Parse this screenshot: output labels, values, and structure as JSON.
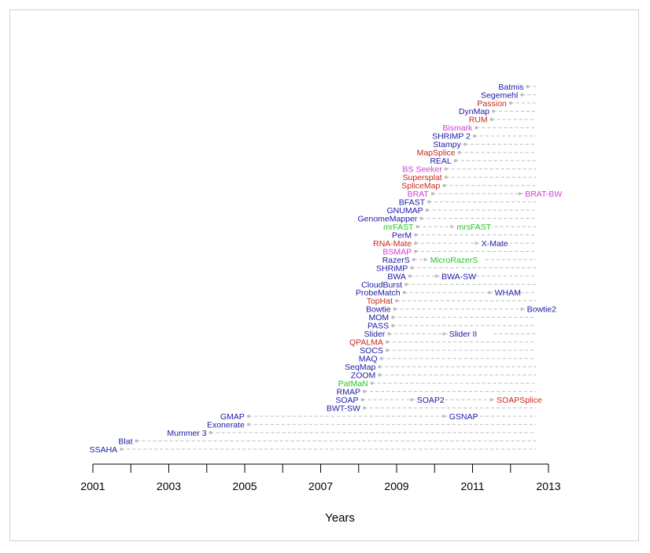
{
  "colors": {
    "aligner": "#1a1aa6",
    "splice": "#c8281e",
    "bisulfite": "#d23cd2",
    "other": "#1ec81e",
    "line": "#bdbdbd"
  },
  "chart_data": {
    "type": "timeline",
    "title": "",
    "xlabel": "Years",
    "ylabel": "",
    "xlim": [
      2001,
      2013
    ],
    "x_ticks": [
      "2001",
      "2003",
      "2005",
      "2007",
      "2009",
      "2011",
      "2013"
    ],
    "grid": false,
    "legend": "none",
    "tools": [
      {
        "name": "SSAHA",
        "year": 2001.75,
        "category": "aligner",
        "successors": []
      },
      {
        "name": "Blat",
        "year": 2002.15,
        "category": "aligner",
        "successors": []
      },
      {
        "name": "Mummer 3",
        "year": 2004.1,
        "category": "aligner",
        "successors": []
      },
      {
        "name": "Exonerate",
        "year": 2005.1,
        "category": "aligner",
        "successors": []
      },
      {
        "name": "GMAP",
        "year": 2005.1,
        "category": "aligner",
        "successors": [
          {
            "name": "GSNAP",
            "year": 2010.3,
            "category": "aligner"
          }
        ]
      },
      {
        "name": "BWT-SW",
        "year": 2008.15,
        "category": "aligner",
        "successors": []
      },
      {
        "name": "SOAP",
        "year": 2008.1,
        "category": "aligner",
        "successors": [
          {
            "name": "SOAP2",
            "year": 2009.45,
            "category": "aligner"
          },
          {
            "name": "SOAPSplice",
            "year": 2011.55,
            "category": "splice"
          }
        ]
      },
      {
        "name": "RMAP",
        "year": 2008.15,
        "category": "aligner",
        "successors": []
      },
      {
        "name": "PatMaN",
        "year": 2008.35,
        "category": "other",
        "successors": []
      },
      {
        "name": "ZOOM",
        "year": 2008.55,
        "category": "aligner",
        "successors": []
      },
      {
        "name": "SeqMap",
        "year": 2008.55,
        "category": "aligner",
        "successors": []
      },
      {
        "name": "MAQ",
        "year": 2008.6,
        "category": "aligner",
        "successors": []
      },
      {
        "name": "SOCS",
        "year": 2008.75,
        "category": "aligner",
        "successors": []
      },
      {
        "name": "QPALMA",
        "year": 2008.75,
        "category": "splice",
        "successors": []
      },
      {
        "name": "Slider",
        "year": 2008.8,
        "category": "aligner",
        "successors": [
          {
            "name": "Slider II",
            "year": 2010.3,
            "category": "aligner"
          }
        ]
      },
      {
        "name": "PASS",
        "year": 2008.9,
        "category": "aligner",
        "successors": []
      },
      {
        "name": "MOM",
        "year": 2008.9,
        "category": "aligner",
        "successors": []
      },
      {
        "name": "Bowtie",
        "year": 2008.95,
        "category": "aligner",
        "successors": [
          {
            "name": "Bowtie2",
            "year": 2012.35,
            "category": "aligner"
          }
        ]
      },
      {
        "name": "TopHat",
        "year": 2009.0,
        "category": "splice",
        "successors": []
      },
      {
        "name": "ProbeMatch",
        "year": 2009.2,
        "category": "aligner",
        "successors": [
          {
            "name": "WHAM",
            "year": 2011.5,
            "category": "aligner"
          }
        ]
      },
      {
        "name": "CloudBurst",
        "year": 2009.25,
        "category": "aligner",
        "successors": []
      },
      {
        "name": "BWA",
        "year": 2009.35,
        "category": "aligner",
        "successors": [
          {
            "name": "BWA-SW",
            "year": 2010.1,
            "category": "aligner"
          }
        ]
      },
      {
        "name": "SHRiMP",
        "year": 2009.4,
        "category": "aligner",
        "successors": []
      },
      {
        "name": "RazerS",
        "year": 2009.45,
        "category": "aligner",
        "successors": [
          {
            "name": "MicroRazerS",
            "year": 2009.8,
            "category": "other"
          }
        ]
      },
      {
        "name": "BSMAP",
        "year": 2009.5,
        "category": "bisulfite",
        "successors": []
      },
      {
        "name": "RNA-Mate",
        "year": 2009.5,
        "category": "splice",
        "successors": [
          {
            "name": "X-Mate",
            "year": 2011.15,
            "category": "aligner"
          }
        ]
      },
      {
        "name": "PerM",
        "year": 2009.5,
        "category": "aligner",
        "successors": []
      },
      {
        "name": "mrFAST",
        "year": 2009.55,
        "category": "other",
        "successors": [
          {
            "name": "mrsFAST",
            "year": 2010.5,
            "category": "other"
          }
        ]
      },
      {
        "name": "GenomeMapper",
        "year": 2009.65,
        "category": "aligner",
        "successors": []
      },
      {
        "name": "GNUMAP",
        "year": 2009.8,
        "category": "aligner",
        "successors": []
      },
      {
        "name": "BFAST",
        "year": 2009.85,
        "category": "aligner",
        "successors": []
      },
      {
        "name": "BRAT",
        "year": 2009.95,
        "category": "bisulfite",
        "successors": [
          {
            "name": "BRAT-BW",
            "year": 2012.3,
            "category": "bisulfite"
          }
        ]
      },
      {
        "name": "SpliceMap",
        "year": 2010.25,
        "category": "splice",
        "successors": []
      },
      {
        "name": "Supersplat",
        "year": 2010.3,
        "category": "splice",
        "successors": []
      },
      {
        "name": "BS Seeker",
        "year": 2010.3,
        "category": "bisulfite",
        "successors": []
      },
      {
        "name": "REAL",
        "year": 2010.55,
        "category": "aligner",
        "successors": []
      },
      {
        "name": "MapSplice",
        "year": 2010.65,
        "category": "splice",
        "successors": []
      },
      {
        "name": "Stampy",
        "year": 2010.8,
        "category": "aligner",
        "successors": []
      },
      {
        "name": "SHRiMP 2",
        "year": 2011.05,
        "category": "aligner",
        "successors": []
      },
      {
        "name": "Bismark",
        "year": 2011.1,
        "category": "bisulfite",
        "successors": []
      },
      {
        "name": "RUM",
        "year": 2011.5,
        "category": "splice",
        "successors": []
      },
      {
        "name": "DynMap",
        "year": 2011.55,
        "category": "aligner",
        "successors": []
      },
      {
        "name": "Passion",
        "year": 2012.0,
        "category": "splice",
        "successors": []
      },
      {
        "name": "Segemehl",
        "year": 2012.3,
        "category": "aligner",
        "successors": []
      },
      {
        "name": "Batmis",
        "year": 2012.45,
        "category": "aligner",
        "successors": []
      }
    ]
  }
}
